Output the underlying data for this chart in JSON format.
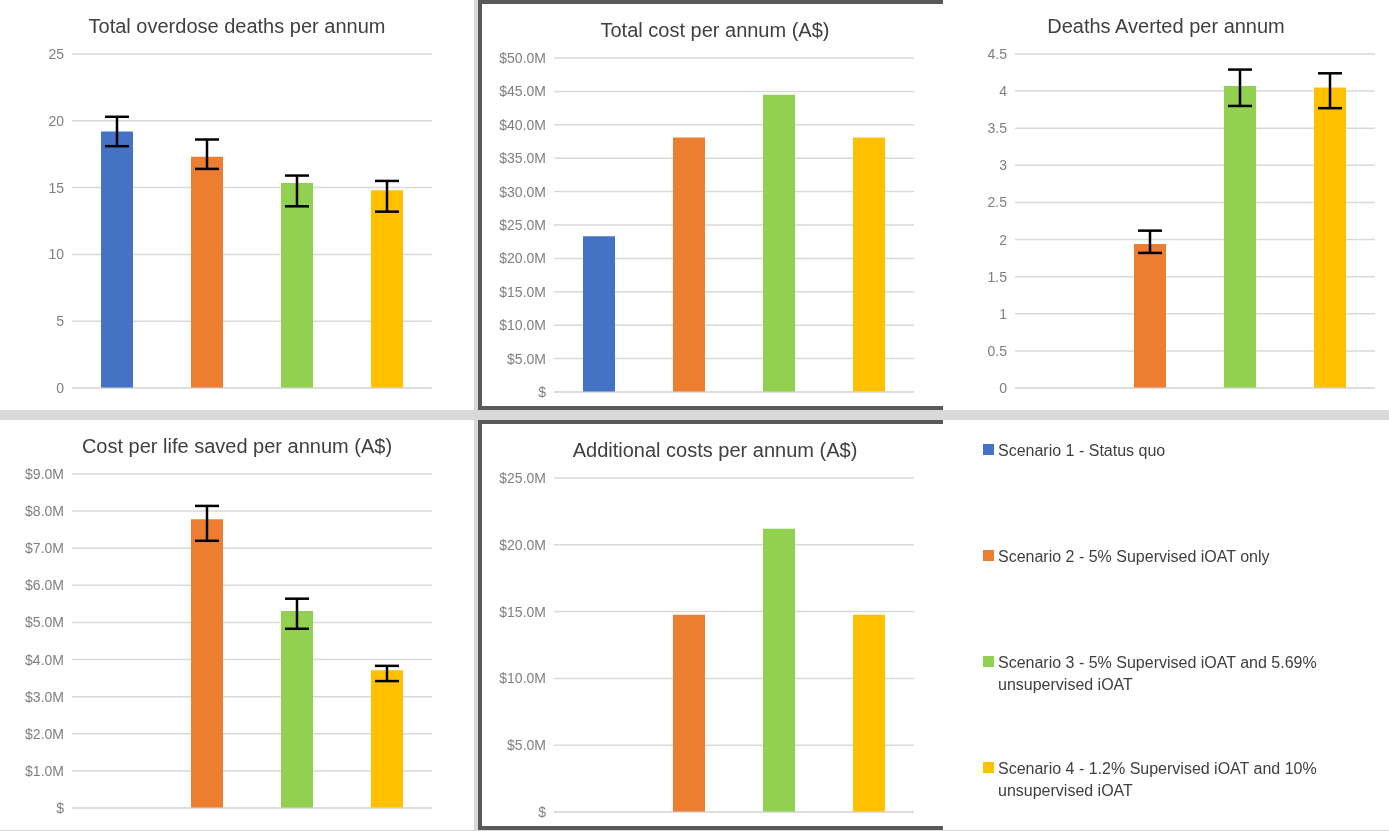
{
  "chart_data": [
    {
      "type": "bar",
      "title": "Total overdose deaths per annum",
      "categories": [
        null,
        null,
        null,
        null
      ],
      "values": [
        19.2,
        17.3,
        15.35,
        14.8
      ],
      "colors": [
        "#4472c4",
        "#ed7d31",
        "#92d050",
        "#ffc000"
      ],
      "errors": [
        [
          18.1,
          20.3
        ],
        [
          16.4,
          18.6
        ],
        [
          13.6,
          15.9
        ],
        [
          13.2,
          15.5
        ]
      ],
      "ylim": [
        0,
        25
      ],
      "yticks": [
        0,
        5,
        10,
        15,
        20,
        25
      ],
      "grid": "y"
    },
    {
      "type": "bar",
      "title": "Total cost per annum (A$)",
      "categories": [
        null,
        null,
        null,
        null
      ],
      "values": [
        23.3,
        38.1,
        44.5,
        38.1
      ],
      "colors": [
        "#4472c4",
        "#ed7d31",
        "#92d050",
        "#ffc000"
      ],
      "ylim": [
        0,
        50
      ],
      "yticks": [
        {
          "value": 0,
          "label": "$"
        },
        {
          "value": 5,
          "label": "$5.0M"
        },
        {
          "value": 10,
          "label": "$10.0M"
        },
        {
          "value": 15,
          "label": "$15.0M"
        },
        {
          "value": 20,
          "label": "$20.0M"
        },
        {
          "value": 25,
          "label": "$25.0M"
        },
        {
          "value": 30,
          "label": "$30.0M"
        },
        {
          "value": 35,
          "label": "$35.0M"
        },
        {
          "value": 40,
          "label": "$40.0M"
        },
        {
          "value": 45,
          "label": "$45.0M"
        },
        {
          "value": 50,
          "label": "$50.0M"
        }
      ],
      "grid": "y"
    },
    {
      "type": "bar",
      "title": "Deaths Averted per annum",
      "categories": [
        null,
        null,
        null,
        null
      ],
      "values": [
        null,
        1.94,
        4.07,
        4.05
      ],
      "colors": [
        "#4472c4",
        "#ed7d31",
        "#92d050",
        "#ffc000"
      ],
      "errors": [
        null,
        [
          1.82,
          2.12
        ],
        [
          3.8,
          4.29
        ],
        [
          3.77,
          4.24
        ]
      ],
      "ylim": [
        0,
        4.5
      ],
      "yticks": [
        0,
        0.5,
        1,
        1.5,
        2,
        2.5,
        3,
        3.5,
        4,
        4.5
      ],
      "grid": "y"
    },
    {
      "type": "bar",
      "title": "Cost per life saved per annum (A$)",
      "categories": [
        null,
        null,
        null,
        null
      ],
      "values": [
        null,
        7.78,
        5.31,
        3.71
      ],
      "colors": [
        "#4472c4",
        "#ed7d31",
        "#92d050",
        "#ffc000"
      ],
      "errors": [
        null,
        [
          7.2,
          8.14
        ],
        [
          4.83,
          5.64
        ],
        [
          3.42,
          3.83
        ]
      ],
      "ylim": [
        0,
        9
      ],
      "yticks": [
        {
          "value": 0,
          "label": "$"
        },
        {
          "value": 1,
          "label": "$1.0M"
        },
        {
          "value": 2,
          "label": "$2.0M"
        },
        {
          "value": 3,
          "label": "$3.0M"
        },
        {
          "value": 4,
          "label": "$4.0M"
        },
        {
          "value": 5,
          "label": "$5.0M"
        },
        {
          "value": 6,
          "label": "$6.0M"
        },
        {
          "value": 7,
          "label": "$7.0M"
        },
        {
          "value": 8,
          "label": "$8.0M"
        },
        {
          "value": 9,
          "label": "$9.0M"
        }
      ],
      "grid": "y"
    },
    {
      "type": "bar",
      "title": "Additional costs per annum (A$)",
      "categories": [
        null,
        null,
        null,
        null
      ],
      "values": [
        null,
        14.77,
        21.2,
        14.77
      ],
      "colors": [
        "#4472c4",
        "#ed7d31",
        "#92d050",
        "#ffc000"
      ],
      "ylim": [
        0,
        25
      ],
      "yticks": [
        {
          "value": 0,
          "label": "$"
        },
        {
          "value": 5,
          "label": "$5.0M"
        },
        {
          "value": 10,
          "label": "$10.0M"
        },
        {
          "value": 15,
          "label": "$15.0M"
        },
        {
          "value": 20,
          "label": "$20.0M"
        },
        {
          "value": 25,
          "label": "$25.0M"
        }
      ],
      "grid": "y"
    },
    {
      "type": "other",
      "categories": [
        "Scenario 1 - Status quo",
        "Scenario 2 - 5% Supervised iOAT only",
        "Scenario 3 - 5% Supervised iOAT and 5.69% unsupervised iOAT",
        "Scenario 4 - 1.2% Supervised iOAT and 10% unsupervised iOAT"
      ],
      "colors": [
        "#4472c4",
        "#ed7d31",
        "#92d050",
        "#ffc000"
      ]
    }
  ]
}
